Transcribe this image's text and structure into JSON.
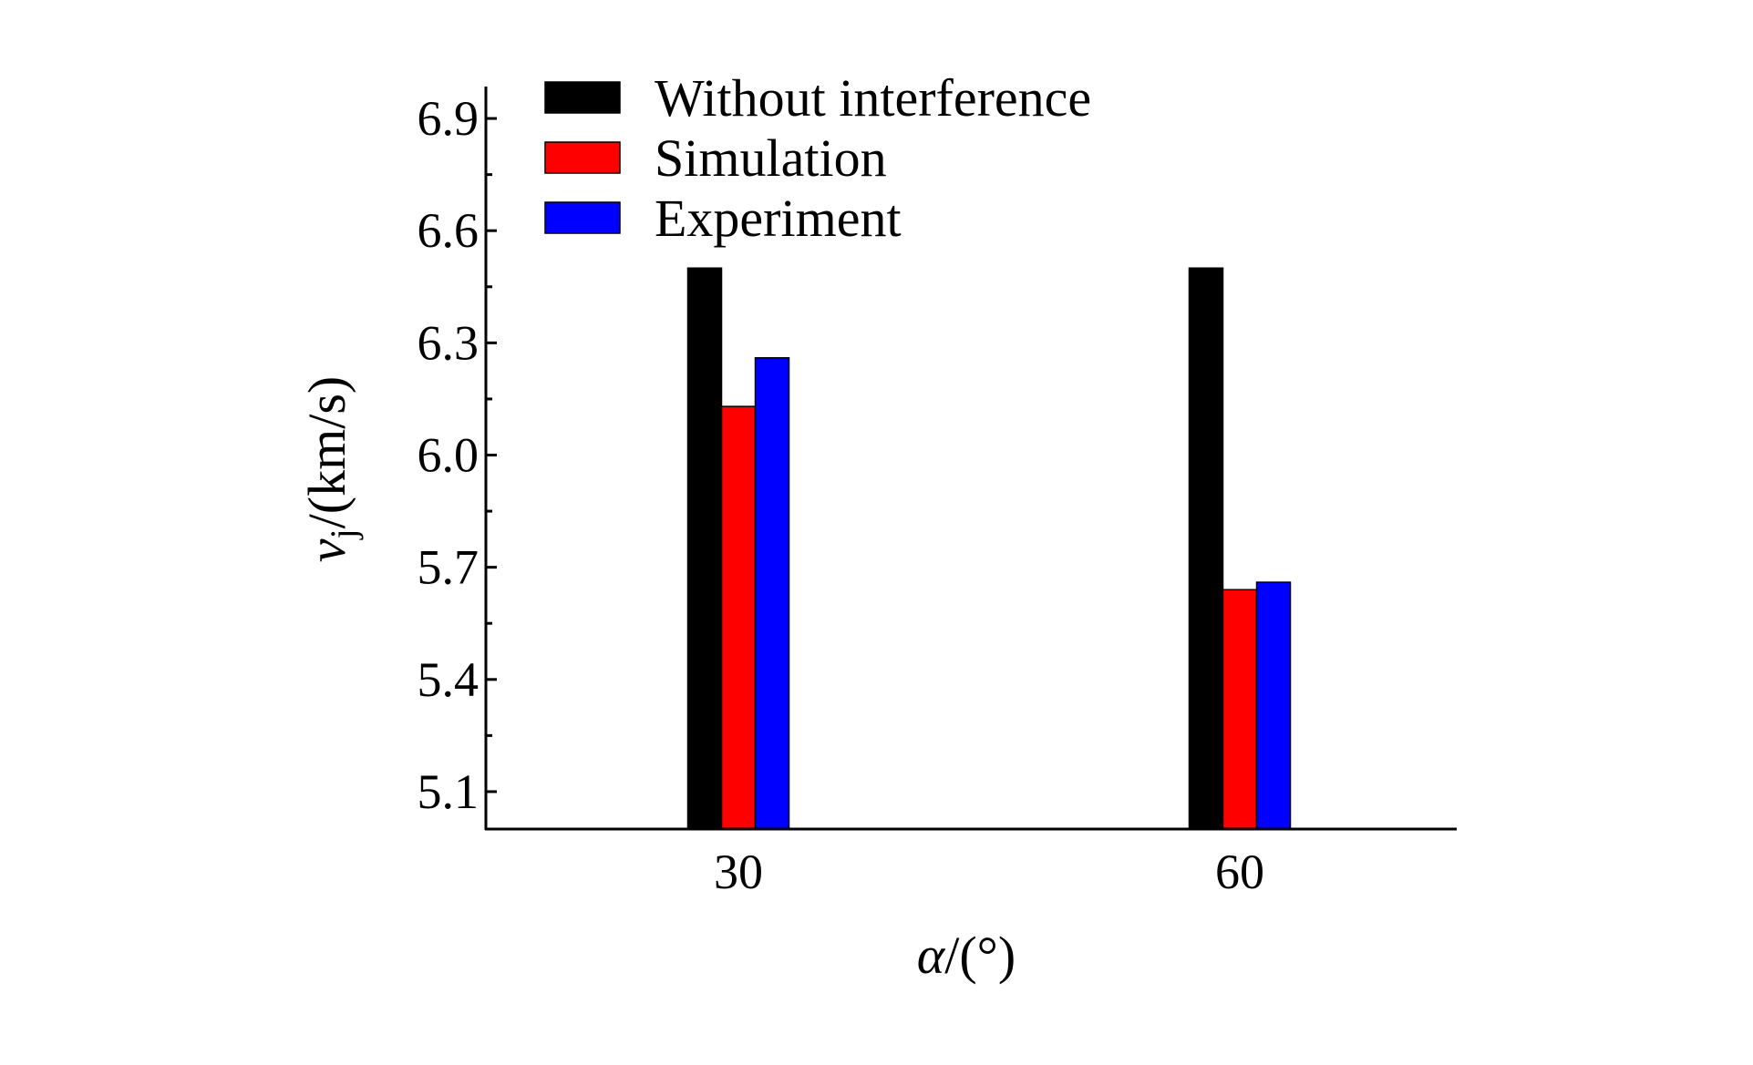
{
  "chart_data": {
    "type": "bar",
    "categories": [
      "30",
      "60"
    ],
    "series": [
      {
        "name": "Without interference",
        "color": "#000000",
        "values": [
          6.5,
          6.5
        ]
      },
      {
        "name": "Simulation",
        "color": "#ff0000",
        "values": [
          6.13,
          5.64
        ]
      },
      {
        "name": "Experiment",
        "color": "#0000ff",
        "values": [
          6.26,
          5.66
        ]
      }
    ],
    "xlabel": {
      "var": "α",
      "unit": "/(°)"
    },
    "ylabel": {
      "var": "v",
      "sub": "j",
      "unit": "/(km/s)"
    },
    "ylim": [
      5.0,
      7.0
    ],
    "yticks": [
      "5.1",
      "5.4",
      "5.7",
      "6.0",
      "6.3",
      "6.6",
      "6.9"
    ],
    "grid": false,
    "legend_position": "top-left",
    "title": ""
  }
}
